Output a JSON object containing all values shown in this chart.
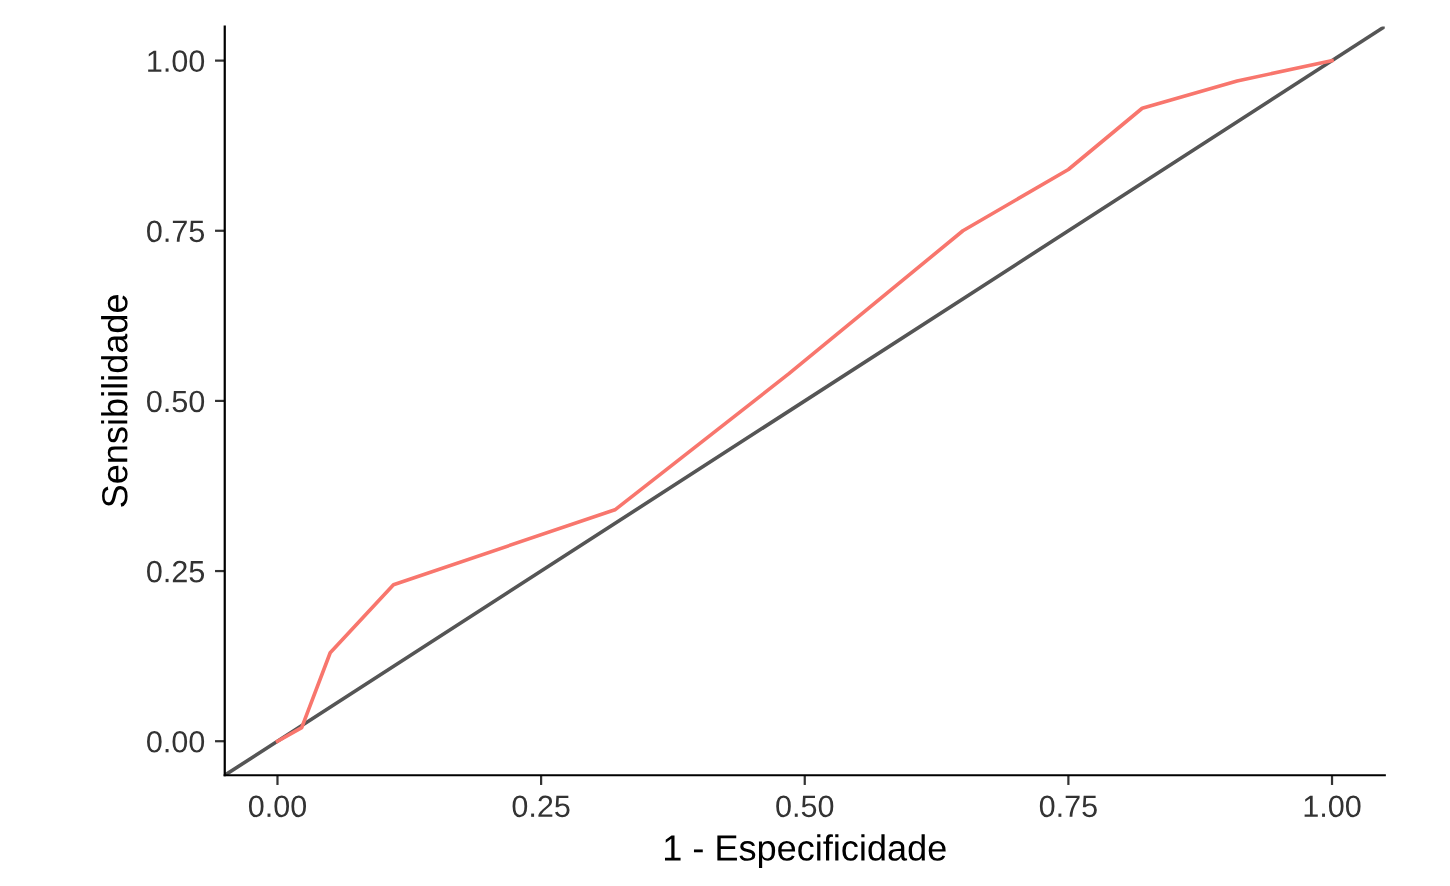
{
  "chart_data": {
    "type": "line",
    "xlabel": "1 - Especificidade",
    "ylabel": "Sensibilidade",
    "xlim": [
      -0.05,
      1.05
    ],
    "ylim": [
      -0.05,
      1.05
    ],
    "xticks": [
      {
        "value": 0,
        "label": "0.00"
      },
      {
        "value": 0.25,
        "label": "0.25"
      },
      {
        "value": 0.5,
        "label": "0.50"
      },
      {
        "value": 0.75,
        "label": "0.75"
      },
      {
        "value": 1,
        "label": "1.00"
      }
    ],
    "yticks": [
      {
        "value": 0,
        "label": "0.00"
      },
      {
        "value": 0.25,
        "label": "0.25"
      },
      {
        "value": 0.5,
        "label": "0.50"
      },
      {
        "value": 0.75,
        "label": "0.75"
      },
      {
        "value": 1,
        "label": "1.00"
      }
    ],
    "grid": false,
    "legend": false,
    "series": [
      {
        "color": "#555555",
        "x": [
          -0.05,
          1.05
        ],
        "values": [
          -0.05,
          1.05
        ]
      },
      {
        "color": "#f8766d",
        "x": [
          0,
          0.023,
          0.05,
          0.11,
          0.32,
          0.485,
          0.65,
          0.75,
          0.82,
          0.91,
          1
        ],
        "values": [
          0,
          0.02,
          0.13,
          0.23,
          0.34,
          0.54,
          0.75,
          0.84,
          0.93,
          0.97,
          1
        ]
      }
    ]
  }
}
